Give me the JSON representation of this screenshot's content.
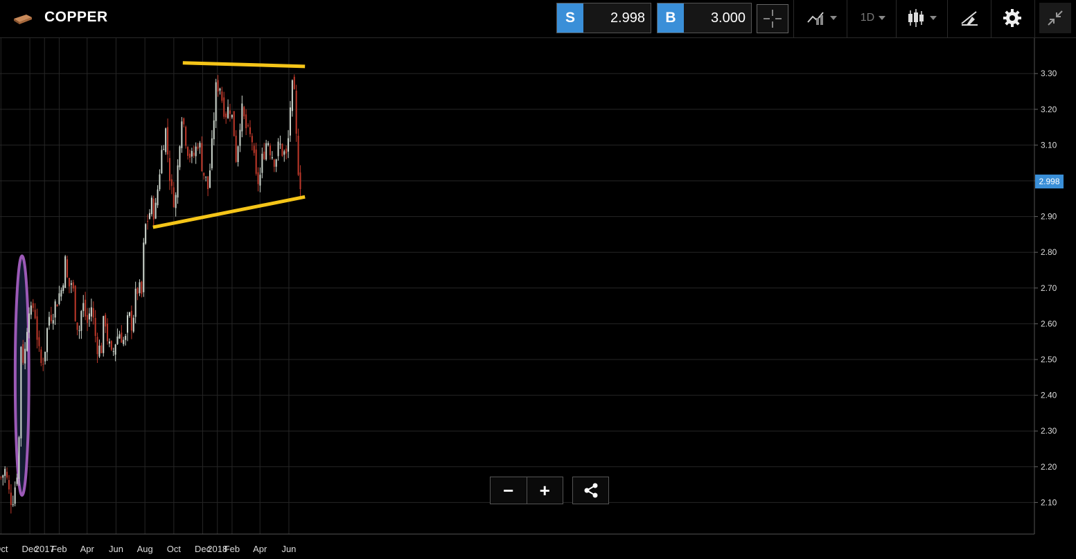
{
  "header": {
    "instrument_name": "COPPER",
    "instrument_icon": "copper-bar-icon"
  },
  "prices": {
    "sell_label": "S",
    "sell_value": "2.998",
    "buy_label": "B",
    "buy_value": "3.000"
  },
  "toolbar": {
    "crosshair_icon": "crosshair-icon",
    "indicators_icon": "indicators-icon",
    "timeframe": "1D",
    "chart_type_icon": "candlestick-icon",
    "drawing_icon": "drawing-tools-icon",
    "settings_icon": "gear-icon",
    "collapse_icon": "collapse-icon"
  },
  "chart_data": {
    "type": "candlestick",
    "y_ticks": [
      "3.30",
      "3.20",
      "3.10",
      "3.00",
      "2.90",
      "2.80",
      "2.70",
      "2.60",
      "2.50",
      "2.40",
      "2.30",
      "2.20",
      "2.10"
    ],
    "x_ticks": [
      "Oct",
      "Dec",
      "2017",
      "Feb",
      "Apr",
      "Jun",
      "Aug",
      "Oct",
      "Dec",
      "2018",
      "Feb",
      "Apr",
      "Jun"
    ],
    "ylim": [
      2.02,
      3.42
    ],
    "current_price": "2.998",
    "grid": true,
    "colors": {
      "up": "#cfd8cf",
      "down": "#c0392b",
      "trendline": "#f5c518",
      "highlight": "#9b59b6",
      "price_tag": "#3a8fd8"
    },
    "close_path": [
      [
        "2016-10-01",
        2.17
      ],
      [
        "2016-10-10",
        2.19
      ],
      [
        "2016-10-20",
        2.11
      ],
      [
        "2016-10-28",
        2.12
      ],
      [
        "2016-11-05",
        2.2
      ],
      [
        "2016-11-09",
        2.3
      ],
      [
        "2016-11-11",
        2.53
      ],
      [
        "2016-11-14",
        2.56
      ],
      [
        "2016-11-18",
        2.48
      ],
      [
        "2016-11-24",
        2.57
      ],
      [
        "2016-11-28",
        2.67
      ],
      [
        "2016-12-03",
        2.62
      ],
      [
        "2016-12-10",
        2.66
      ],
      [
        "2016-12-17",
        2.56
      ],
      [
        "2016-12-23",
        2.48
      ],
      [
        "2016-12-31",
        2.51
      ],
      [
        "2017-01-10",
        2.62
      ],
      [
        "2017-01-20",
        2.64
      ],
      [
        "2017-01-31",
        2.68
      ],
      [
        "2017-02-07",
        2.7
      ],
      [
        "2017-02-13",
        2.78
      ],
      [
        "2017-02-20",
        2.7
      ],
      [
        "2017-02-28",
        2.72
      ],
      [
        "2017-03-08",
        2.62
      ],
      [
        "2017-03-15",
        2.58
      ],
      [
        "2017-03-22",
        2.66
      ],
      [
        "2017-04-01",
        2.6
      ],
      [
        "2017-04-10",
        2.65
      ],
      [
        "2017-04-20",
        2.55
      ],
      [
        "2017-04-30",
        2.52
      ],
      [
        "2017-05-08",
        2.63
      ],
      [
        "2017-05-15",
        2.55
      ],
      [
        "2017-05-23",
        2.5
      ],
      [
        "2017-06-01",
        2.56
      ],
      [
        "2017-06-10",
        2.58
      ],
      [
        "2017-06-20",
        2.54
      ],
      [
        "2017-06-27",
        2.62
      ],
      [
        "2017-07-05",
        2.6
      ],
      [
        "2017-07-15",
        2.7
      ],
      [
        "2017-07-25",
        2.68
      ],
      [
        "2017-07-31",
        2.86
      ],
      [
        "2017-08-08",
        2.9
      ],
      [
        "2017-08-15",
        2.93
      ],
      [
        "2017-08-23",
        2.91
      ],
      [
        "2017-08-31",
        3.02
      ],
      [
        "2017-09-08",
        3.11
      ],
      [
        "2017-09-14",
        3.14
      ],
      [
        "2017-09-20",
        3.05
      ],
      [
        "2017-09-27",
        2.96
      ],
      [
        "2017-10-05",
        2.95
      ],
      [
        "2017-10-12",
        3.09
      ],
      [
        "2017-10-17",
        3.2
      ],
      [
        "2017-10-24",
        3.14
      ],
      [
        "2017-10-31",
        3.09
      ],
      [
        "2017-11-08",
        3.06
      ],
      [
        "2017-11-15",
        3.08
      ],
      [
        "2017-11-22",
        3.12
      ],
      [
        "2017-11-28",
        3.06
      ],
      [
        "2017-12-05",
        3.01
      ],
      [
        "2017-12-12",
        2.98
      ],
      [
        "2017-12-20",
        3.08
      ],
      [
        "2017-12-28",
        3.25
      ],
      [
        "2018-01-05",
        3.28
      ],
      [
        "2018-01-12",
        3.22
      ],
      [
        "2018-01-20",
        3.19
      ],
      [
        "2018-01-28",
        3.21
      ],
      [
        "2018-02-05",
        3.14
      ],
      [
        "2018-02-10",
        3.06
      ],
      [
        "2018-02-20",
        3.2
      ],
      [
        "2018-02-28",
        3.16
      ],
      [
        "2018-03-08",
        3.12
      ],
      [
        "2018-03-15",
        3.12
      ],
      [
        "2018-03-23",
        3.0
      ],
      [
        "2018-03-31",
        3.0
      ],
      [
        "2018-04-08",
        3.08
      ],
      [
        "2018-04-17",
        3.12
      ],
      [
        "2018-04-25",
        3.08
      ],
      [
        "2018-05-03",
        3.06
      ],
      [
        "2018-05-12",
        3.1
      ],
      [
        "2018-05-20",
        3.08
      ],
      [
        "2018-05-28",
        3.06
      ],
      [
        "2018-06-01",
        3.14
      ],
      [
        "2018-06-06",
        3.26
      ],
      [
        "2018-06-12",
        3.24
      ],
      [
        "2018-06-18",
        3.08
      ],
      [
        "2018-06-24",
        3.0
      ],
      [
        "2018-06-29",
        2.998
      ]
    ],
    "annotations": {
      "resistance_line": {
        "from": [
          "2017-10-20",
          3.33
        ],
        "to": [
          "2018-07-05",
          3.32
        ]
      },
      "support_line": {
        "from": [
          "2017-08-18",
          2.87
        ],
        "to": [
          "2018-07-05",
          2.955
        ]
      },
      "highlight_ellipse": {
        "x_range": [
          "2016-10-31",
          "2016-11-29"
        ],
        "y_range": [
          2.12,
          2.79
        ]
      }
    }
  },
  "controls": {
    "zoom_out_label": "−",
    "zoom_in_label": "+",
    "share_icon": "share-icon"
  }
}
